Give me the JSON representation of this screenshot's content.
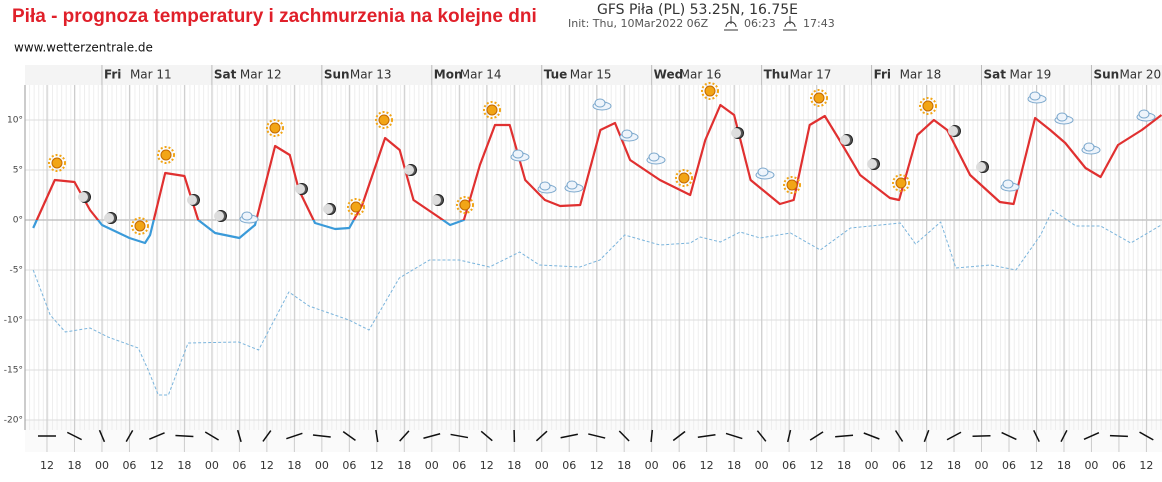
{
  "chart_data": {
    "type": "line",
    "title": "Piła - prognoza temperatury i zachmurzenia na kolejne dni",
    "subtitle": "www.wetterzentrale.de",
    "model_title": "GFS Piła (PL) 53.25N, 16.75E",
    "init": "Init: Thu, 10Mar2022 06Z",
    "sunrise": "06:23",
    "sunset": "17:43",
    "days": [
      {
        "weekday": "Fri",
        "date": "Mar 11",
        "hour": 24
      },
      {
        "weekday": "Sat",
        "date": "Mar 12",
        "hour": 48
      },
      {
        "weekday": "Sun",
        "date": "Mar 13",
        "hour": 72
      },
      {
        "weekday": "Mon",
        "date": "Mar 14",
        "hour": 96
      },
      {
        "weekday": "Tue",
        "date": "Mar 15",
        "hour": 120
      },
      {
        "weekday": "Wed",
        "date": "Mar 16",
        "hour": 144
      },
      {
        "weekday": "Thu",
        "date": "Mar 17",
        "hour": 168
      },
      {
        "weekday": "Fri",
        "date": "Mar 18",
        "hour": 192
      },
      {
        "weekday": "Sat",
        "date": "Mar 19",
        "hour": 216
      },
      {
        "weekday": "Sun",
        "date": "Mar 20",
        "hour": 240
      }
    ],
    "xlim": [
      7.2,
      255.4
    ],
    "ylim": [
      -21,
      13.5
    ],
    "yticks": [
      {
        "value": 10,
        "label": "10°"
      },
      {
        "value": 5,
        "label": "5°"
      },
      {
        "value": 0,
        "label": "0°"
      },
      {
        "value": -5,
        "label": "-5°"
      },
      {
        "value": -10,
        "label": "-10°"
      },
      {
        "value": -15,
        "label": "-15°"
      },
      {
        "value": -20,
        "label": "-20°"
      }
    ],
    "xticks": [
      {
        "value": 12,
        "label": "12"
      },
      {
        "value": 18,
        "label": "18"
      },
      {
        "value": 24,
        "label": "00"
      },
      {
        "value": 30,
        "label": "06"
      },
      {
        "value": 36,
        "label": "12"
      },
      {
        "value": 42,
        "label": "18"
      },
      {
        "value": 48,
        "label": "00"
      },
      {
        "value": 54,
        "label": "06"
      },
      {
        "value": 60,
        "label": "12"
      },
      {
        "value": 66,
        "label": "18"
      },
      {
        "value": 72,
        "label": "00"
      },
      {
        "value": 78,
        "label": "06"
      },
      {
        "value": 84,
        "label": "12"
      },
      {
        "value": 90,
        "label": "18"
      },
      {
        "value": 96,
        "label": "00"
      },
      {
        "value": 102,
        "label": "06"
      },
      {
        "value": 108,
        "label": "12"
      },
      {
        "value": 114,
        "label": "18"
      },
      {
        "value": 120,
        "label": "00"
      },
      {
        "value": 126,
        "label": "06"
      },
      {
        "value": 132,
        "label": "12"
      },
      {
        "value": 138,
        "label": "18"
      },
      {
        "value": 144,
        "label": "00"
      },
      {
        "value": 150,
        "label": "06"
      },
      {
        "value": 156,
        "label": "12"
      },
      {
        "value": 162,
        "label": "18"
      },
      {
        "value": 168,
        "label": "00"
      },
      {
        "value": 174,
        "label": "06"
      },
      {
        "value": 180,
        "label": "12"
      },
      {
        "value": 186,
        "label": "18"
      },
      {
        "value": 192,
        "label": "00"
      },
      {
        "value": 198,
        "label": "06"
      },
      {
        "value": 204,
        "label": "12"
      },
      {
        "value": 210,
        "label": "18"
      },
      {
        "value": 216,
        "label": "00"
      },
      {
        "value": 222,
        "label": "06"
      },
      {
        "value": 228,
        "label": "12"
      },
      {
        "value": 234,
        "label": "18"
      },
      {
        "value": 240,
        "label": "00"
      },
      {
        "value": 246,
        "label": "06"
      },
      {
        "value": 252,
        "label": "12"
      }
    ],
    "series": [
      {
        "name": "temperature",
        "color": "#e03030",
        "negative_color": "#3a9ad9",
        "style": "solid",
        "x": [
          9,
          13.7,
          18,
          21.4,
          24,
          30,
          33.4,
          34.5,
          37.8,
          42,
          45,
          48.7,
          54,
          57.4,
          61.8,
          65,
          67,
          70.5,
          74.9,
          78,
          80.8,
          85.8,
          89,
          92,
          97.8,
          100,
          103,
          106.5,
          109.8,
          113,
          116.4,
          120.7,
          124,
          128.4,
          132.8,
          136,
          139.3,
          145.8,
          152.4,
          155.7,
          159,
          162,
          165.6,
          172,
          175,
          178.5,
          181.8,
          185,
          189.5,
          196,
          198,
          202,
          205.6,
          208.5,
          213.5,
          220,
          223,
          227.7,
          231,
          234.3,
          238.7,
          242,
          245.8,
          251,
          255.3
        ],
        "values": [
          -0.8,
          4,
          3.8,
          1,
          -0.5,
          -1.8,
          -2.3,
          -1.5,
          4.7,
          4.4,
          0,
          -1.3,
          -1.8,
          -0.5,
          7.4,
          6.5,
          3,
          -0.3,
          -0.9,
          -0.8,
          1.5,
          8.2,
          7,
          2,
          0.2,
          -0.5,
          0,
          5.5,
          9.5,
          9.5,
          4,
          2,
          1.4,
          1.5,
          9,
          9.7,
          6,
          4,
          2.5,
          8,
          11.5,
          10.5,
          4,
          1.6,
          2,
          9.5,
          10.4,
          8,
          4.5,
          2.2,
          2,
          8.5,
          10,
          9,
          4.5,
          1.8,
          1.6,
          10.2,
          9,
          7.7,
          5.2,
          4.3,
          7.5,
          9,
          10.5
        ]
      },
      {
        "name": "dew point",
        "color": "#7ab4dc",
        "style": "dashed",
        "x": [
          9,
          12.7,
          16,
          21.4,
          25.3,
          31.9,
          34.1,
          36.3,
          38.5,
          42.8,
          53.8,
          58.2,
          64.8,
          69.2,
          77.9,
          82.3,
          88.9,
          95.5,
          102,
          108.6,
          115.2,
          119.5,
          128.3,
          132.7,
          138.1,
          145.8,
          152.4,
          154.6,
          159,
          163.3,
          167.7,
          174.3,
          180.8,
          187.4,
          193.9,
          198.3,
          201.6,
          207.1,
          210.4,
          218,
          223.5,
          228.9,
          231.5,
          236.6,
          242,
          248.6,
          255.6
        ],
        "values": [
          -5,
          -9.5,
          -11.2,
          -10.8,
          -11.7,
          -12.8,
          -15,
          -17.5,
          -17.5,
          -12.3,
          -12.2,
          -13,
          -7.2,
          -8.6,
          -10,
          -11,
          -5.8,
          -4,
          -4,
          -4.7,
          -3.2,
          -4.5,
          -4.7,
          -4,
          -1.5,
          -2.5,
          -2.3,
          -1.7,
          -2.2,
          -1.2,
          -1.8,
          -1.3,
          -3,
          -0.8,
          -0.5,
          -0.3,
          -2.4,
          -0.2,
          -4.8,
          -4.5,
          -5,
          -1.5,
          1,
          -0.6,
          -0.6,
          -2.3,
          -0.4
        ]
      }
    ],
    "grid": true
  }
}
